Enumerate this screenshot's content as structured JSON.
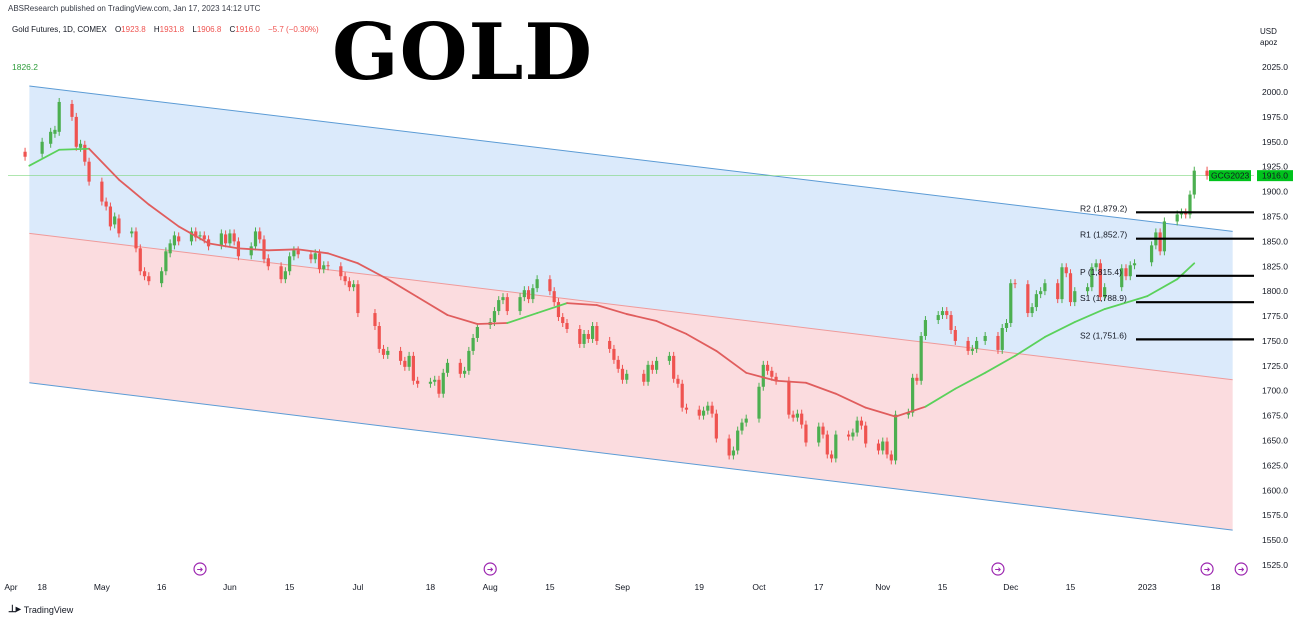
{
  "header": {
    "published_by": "ABSResearch published on TradingView.com, Jan 17, 2023 14:12 UTC"
  },
  "symbol_line": {
    "name": "Gold Futures, 1D, COMEX",
    "open_label": "O",
    "open": "1923.8",
    "high_label": "H",
    "high": "1931.8",
    "low_label": "L",
    "low": "1906.8",
    "close_label": "C",
    "close": "1916.0",
    "change": "−5.7 (−0.30%)"
  },
  "big_title": "GOLD",
  "currency": {
    "line1": "USD",
    "line2": "apoz"
  },
  "footer": {
    "brand": "TradingView"
  },
  "chart_data": {
    "type": "candlestick",
    "yticks": [
      "2025.0",
      "2000.0",
      "1975.0",
      "1950.0",
      "1925.0",
      "1900.0",
      "1875.0",
      "1850.0",
      "1825.0",
      "1800.0",
      "1775.0",
      "1750.0",
      "1725.0",
      "1700.0",
      "1675.0",
      "1650.0",
      "1625.0",
      "1600.0",
      "1575.0",
      "1550.0",
      "1525.0"
    ],
    "xticks": [
      {
        "label": "Apr",
        "date": "2022-04-15"
      },
      {
        "label": "18",
        "date": "2022-04-18"
      },
      {
        "label": "May",
        "date": "2022-05-02"
      },
      {
        "label": "16",
        "date": "2022-05-16"
      },
      {
        "label": "Jun",
        "date": "2022-06-01"
      },
      {
        "label": "15",
        "date": "2022-06-15"
      },
      {
        "label": "Jul",
        "date": "2022-07-01"
      },
      {
        "label": "18",
        "date": "2022-07-18"
      },
      {
        "label": "Aug",
        "date": "2022-08-01"
      },
      {
        "label": "15",
        "date": "2022-08-15"
      },
      {
        "label": "Sep",
        "date": "2022-09-01"
      },
      {
        "label": "19",
        "date": "2022-09-19"
      },
      {
        "label": "Oct",
        "date": "2022-10-03"
      },
      {
        "label": "17",
        "date": "2022-10-17"
      },
      {
        "label": "Nov",
        "date": "2022-11-01"
      },
      {
        "label": "15",
        "date": "2022-11-15"
      },
      {
        "label": "Dec",
        "date": "2022-12-01"
      },
      {
        "label": "15",
        "date": "2022-12-15"
      },
      {
        "label": "2023",
        "date": "2023-01-02"
      },
      {
        "label": "18",
        "date": "2023-01-18"
      }
    ],
    "left_price_label": "1826.2",
    "last_price": {
      "symbol": "GCG2023",
      "value": "1916.0",
      "price": 1916.0,
      "color": "#00c31c"
    },
    "pivots": [
      {
        "label": "R2 (1,879.2)",
        "value": 1879.2
      },
      {
        "label": "R1 (1,852.7)",
        "value": 1852.7
      },
      {
        "label": "P (1,815.4)",
        "value": 1815.4
      },
      {
        "label": "S1 (1,788.9)",
        "value": 1788.9
      },
      {
        "label": "S2 (1,751.6)",
        "value": 1751.6
      }
    ],
    "upper_channel": {
      "color": "#5b9bd5",
      "fill": "#dbeafb",
      "top": [
        [
          "2022-04-15",
          2006
        ],
        [
          "2023-01-22",
          1860
        ]
      ],
      "mid": [
        [
          "2022-04-15",
          1858
        ],
        [
          "2023-01-22",
          1711
        ]
      ]
    },
    "lower_channel": {
      "color": "#5b9bd5",
      "fill": "#fbdcdf",
      "bottom": [
        [
          "2022-04-15",
          1708
        ],
        [
          "2023-01-22",
          1560
        ]
      ]
    },
    "ma_color_up": "#5ad15a",
    "ma_color_down": "#e05d5d",
    "moving_average": [
      [
        "2022-04-15",
        1926
      ],
      [
        "2022-04-22",
        1942
      ],
      [
        "2022-04-29",
        1943
      ],
      [
        "2022-05-06",
        1912
      ],
      [
        "2022-05-13",
        1887
      ],
      [
        "2022-05-20",
        1865
      ],
      [
        "2022-05-27",
        1848
      ],
      [
        "2022-06-03",
        1843
      ],
      [
        "2022-06-10",
        1841
      ],
      [
        "2022-06-17",
        1842
      ],
      [
        "2022-06-24",
        1838
      ],
      [
        "2022-07-01",
        1828
      ],
      [
        "2022-07-08",
        1812
      ],
      [
        "2022-07-15",
        1794
      ],
      [
        "2022-07-22",
        1776
      ],
      [
        "2022-07-29",
        1767
      ],
      [
        "2022-08-05",
        1768
      ],
      [
        "2022-08-12",
        1778
      ],
      [
        "2022-08-19",
        1788
      ],
      [
        "2022-08-26",
        1786
      ],
      [
        "2022-09-02",
        1777
      ],
      [
        "2022-09-09",
        1770
      ],
      [
        "2022-09-16",
        1757
      ],
      [
        "2022-09-23",
        1740
      ],
      [
        "2022-09-30",
        1718
      ],
      [
        "2022-10-07",
        1710
      ],
      [
        "2022-10-14",
        1708
      ],
      [
        "2022-10-21",
        1697
      ],
      [
        "2022-10-28",
        1683
      ],
      [
        "2022-11-04",
        1674
      ],
      [
        "2022-11-11",
        1684
      ],
      [
        "2022-11-18",
        1702
      ],
      [
        "2022-11-25",
        1718
      ],
      [
        "2022-12-02",
        1735
      ],
      [
        "2022-12-09",
        1754
      ],
      [
        "2022-12-16",
        1769
      ],
      [
        "2022-12-23",
        1782
      ],
      [
        "2023-01-02",
        1795
      ],
      [
        "2023-01-09",
        1812
      ],
      [
        "2023-01-13",
        1828
      ]
    ],
    "ma_switch": [
      [
        "2022-04-20",
        "up"
      ],
      [
        "2022-04-26",
        "down"
      ],
      [
        "2022-08-01",
        "up"
      ],
      [
        "2022-08-16",
        "down"
      ],
      [
        "2022-11-06",
        "up"
      ]
    ],
    "candles": [
      [
        "2022-04-14",
        1940,
        1935
      ],
      [
        "2022-04-18",
        1938,
        1950
      ],
      [
        "2022-04-20",
        1948,
        1960
      ],
      [
        "2022-04-21",
        1958,
        1962
      ],
      [
        "2022-04-22",
        1960,
        1990
      ],
      [
        "2022-04-25",
        1988,
        1975
      ],
      [
        "2022-04-26",
        1975,
        1945
      ],
      [
        "2022-04-27",
        1944,
        1948
      ],
      [
        "2022-04-28",
        1947,
        1930
      ],
      [
        "2022-04-29",
        1930,
        1910
      ],
      [
        "2022-05-02",
        1910,
        1890
      ],
      [
        "2022-05-03",
        1890,
        1885
      ],
      [
        "2022-05-04",
        1885,
        1865
      ],
      [
        "2022-05-05",
        1867,
        1875
      ],
      [
        "2022-05-06",
        1873,
        1858
      ],
      [
        "2022-05-09",
        1858,
        1860
      ],
      [
        "2022-05-10",
        1860,
        1843
      ],
      [
        "2022-05-11",
        1843,
        1820
      ],
      [
        "2022-05-12",
        1820,
        1815
      ],
      [
        "2022-05-13",
        1815,
        1810
      ],
      [
        "2022-05-16",
        1808,
        1820
      ],
      [
        "2022-05-17",
        1820,
        1840
      ],
      [
        "2022-05-18",
        1838,
        1848
      ],
      [
        "2022-05-19",
        1846,
        1856
      ],
      [
        "2022-05-20",
        1855,
        1850
      ],
      [
        "2022-05-23",
        1850,
        1860
      ],
      [
        "2022-05-24",
        1860,
        1854
      ],
      [
        "2022-05-25",
        1855,
        1856
      ],
      [
        "2022-05-26",
        1856,
        1852
      ],
      [
        "2022-05-27",
        1852,
        1845
      ],
      [
        "2022-05-30",
        1846,
        1858
      ],
      [
        "2022-05-31",
        1857,
        1848
      ],
      [
        "2022-06-01",
        1848,
        1858
      ],
      [
        "2022-06-02",
        1858,
        1850
      ],
      [
        "2022-06-03",
        1850,
        1835
      ],
      [
        "2022-06-06",
        1836,
        1845
      ],
      [
        "2022-06-07",
        1845,
        1860
      ],
      [
        "2022-06-08",
        1860,
        1852
      ],
      [
        "2022-06-09",
        1852,
        1832
      ],
      [
        "2022-06-10",
        1833,
        1825
      ],
      [
        "2022-06-13",
        1825,
        1812
      ],
      [
        "2022-06-14",
        1812,
        1820
      ],
      [
        "2022-06-15",
        1820,
        1835
      ],
      [
        "2022-06-16",
        1835,
        1841
      ],
      [
        "2022-06-17",
        1841,
        1837
      ],
      [
        "2022-06-20",
        1837,
        1832
      ],
      [
        "2022-06-21",
        1832,
        1838
      ],
      [
        "2022-06-22",
        1838,
        1822
      ],
      [
        "2022-06-23",
        1822,
        1826
      ],
      [
        "2022-06-24",
        1826,
        1825
      ],
      [
        "2022-06-27",
        1825,
        1815
      ],
      [
        "2022-06-28",
        1815,
        1810
      ],
      [
        "2022-06-29",
        1810,
        1804
      ],
      [
        "2022-06-30",
        1804,
        1807
      ],
      [
        "2022-07-01",
        1807,
        1778
      ],
      [
        "2022-07-05",
        1778,
        1765
      ],
      [
        "2022-07-06",
        1765,
        1742
      ],
      [
        "2022-07-07",
        1742,
        1736
      ],
      [
        "2022-07-08",
        1736,
        1740
      ],
      [
        "2022-07-11",
        1740,
        1730
      ],
      [
        "2022-07-12",
        1730,
        1724
      ],
      [
        "2022-07-13",
        1724,
        1735
      ],
      [
        "2022-07-14",
        1735,
        1710
      ],
      [
        "2022-07-15",
        1710,
        1707
      ],
      [
        "2022-07-18",
        1707,
        1709
      ],
      [
        "2022-07-19",
        1709,
        1711
      ],
      [
        "2022-07-20",
        1711,
        1697
      ],
      [
        "2022-07-21",
        1697,
        1718
      ],
      [
        "2022-07-22",
        1718,
        1728
      ],
      [
        "2022-07-25",
        1728,
        1717
      ],
      [
        "2022-07-26",
        1717,
        1720
      ],
      [
        "2022-07-27",
        1720,
        1740
      ],
      [
        "2022-07-28",
        1740,
        1753
      ],
      [
        "2022-07-29",
        1753,
        1764
      ],
      [
        "2022-08-01",
        1766,
        1769
      ],
      [
        "2022-08-02",
        1769,
        1780
      ],
      [
        "2022-08-03",
        1780,
        1791
      ],
      [
        "2022-08-04",
        1791,
        1794
      ],
      [
        "2022-08-05",
        1794,
        1780
      ],
      [
        "2022-08-08",
        1780,
        1794
      ],
      [
        "2022-08-09",
        1794,
        1801
      ],
      [
        "2022-08-10",
        1801,
        1792
      ],
      [
        "2022-08-11",
        1792,
        1803
      ],
      [
        "2022-08-12",
        1803,
        1812
      ],
      [
        "2022-08-15",
        1812,
        1800
      ],
      [
        "2022-08-16",
        1800,
        1789
      ],
      [
        "2022-08-17",
        1789,
        1774
      ],
      [
        "2022-08-18",
        1774,
        1768
      ],
      [
        "2022-08-19",
        1768,
        1762
      ],
      [
        "2022-08-22",
        1762,
        1747
      ],
      [
        "2022-08-23",
        1747,
        1757
      ],
      [
        "2022-08-24",
        1757,
        1752
      ],
      [
        "2022-08-25",
        1752,
        1765
      ],
      [
        "2022-08-26",
        1765,
        1750
      ],
      [
        "2022-08-29",
        1750,
        1742
      ],
      [
        "2022-08-30",
        1742,
        1731
      ],
      [
        "2022-08-31",
        1731,
        1722
      ],
      [
        "2022-09-01",
        1722,
        1711
      ],
      [
        "2022-09-02",
        1711,
        1717
      ],
      [
        "2022-09-06",
        1717,
        1709
      ],
      [
        "2022-09-07",
        1709,
        1726
      ],
      [
        "2022-09-08",
        1726,
        1721
      ],
      [
        "2022-09-09",
        1721,
        1730
      ],
      [
        "2022-09-12",
        1730,
        1735
      ],
      [
        "2022-09-13",
        1735,
        1712
      ],
      [
        "2022-09-14",
        1712,
        1707
      ],
      [
        "2022-09-15",
        1707,
        1683
      ],
      [
        "2022-09-16",
        1683,
        1681
      ],
      [
        "2022-09-19",
        1681,
        1675
      ],
      [
        "2022-09-20",
        1675,
        1680
      ],
      [
        "2022-09-21",
        1680,
        1685
      ],
      [
        "2022-09-22",
        1685,
        1677
      ],
      [
        "2022-09-23",
        1677,
        1652
      ],
      [
        "2022-09-26",
        1652,
        1635
      ],
      [
        "2022-09-27",
        1635,
        1640
      ],
      [
        "2022-09-28",
        1640,
        1660
      ],
      [
        "2022-09-29",
        1660,
        1668
      ],
      [
        "2022-09-30",
        1668,
        1672
      ],
      [
        "2022-10-03",
        1672,
        1704
      ],
      [
        "2022-10-04",
        1704,
        1726
      ],
      [
        "2022-10-05",
        1726,
        1720
      ],
      [
        "2022-10-06",
        1720,
        1714
      ],
      [
        "2022-10-07",
        1714,
        1710
      ],
      [
        "2022-10-10",
        1710,
        1676
      ],
      [
        "2022-10-11",
        1676,
        1673
      ],
      [
        "2022-10-12",
        1673,
        1677
      ],
      [
        "2022-10-13",
        1677,
        1666
      ],
      [
        "2022-10-14",
        1666,
        1648
      ],
      [
        "2022-10-17",
        1648,
        1664
      ],
      [
        "2022-10-18",
        1664,
        1656
      ],
      [
        "2022-10-19",
        1656,
        1636
      ],
      [
        "2022-10-20",
        1636,
        1632
      ],
      [
        "2022-10-21",
        1632,
        1656
      ],
      [
        "2022-10-24",
        1656,
        1654
      ],
      [
        "2022-10-25",
        1654,
        1658
      ],
      [
        "2022-10-26",
        1658,
        1670
      ],
      [
        "2022-10-27",
        1670,
        1665
      ],
      [
        "2022-10-28",
        1665,
        1647
      ],
      [
        "2022-10-31",
        1647,
        1640
      ],
      [
        "2022-11-01",
        1640,
        1649
      ],
      [
        "2022-11-02",
        1649,
        1636
      ],
      [
        "2022-11-03",
        1636,
        1630
      ],
      [
        "2022-11-04",
        1630,
        1676
      ],
      [
        "2022-11-07",
        1676,
        1678
      ],
      [
        "2022-11-08",
        1678,
        1713
      ],
      [
        "2022-11-09",
        1713,
        1710
      ],
      [
        "2022-11-10",
        1710,
        1755
      ],
      [
        "2022-11-11",
        1755,
        1771
      ],
      [
        "2022-11-14",
        1771,
        1776
      ],
      [
        "2022-11-15",
        1776,
        1780
      ],
      [
        "2022-11-16",
        1780,
        1776
      ],
      [
        "2022-11-17",
        1776,
        1761
      ],
      [
        "2022-11-18",
        1761,
        1750
      ],
      [
        "2022-11-21",
        1750,
        1740
      ],
      [
        "2022-11-22",
        1740,
        1742
      ],
      [
        "2022-11-23",
        1742,
        1750
      ],
      [
        "2022-11-25",
        1750,
        1755
      ],
      [
        "2022-11-28",
        1755,
        1741
      ],
      [
        "2022-11-29",
        1741,
        1763
      ],
      [
        "2022-11-30",
        1763,
        1768
      ],
      [
        "2022-12-01",
        1768,
        1808
      ],
      [
        "2022-12-02",
        1808,
        1807
      ],
      [
        "2022-12-05",
        1807,
        1778
      ],
      [
        "2022-12-06",
        1778,
        1784
      ],
      [
        "2022-12-07",
        1784,
        1797
      ],
      [
        "2022-12-08",
        1797,
        1800
      ],
      [
        "2022-12-09",
        1800,
        1808
      ],
      [
        "2022-12-12",
        1808,
        1792
      ],
      [
        "2022-12-13",
        1792,
        1824
      ],
      [
        "2022-12-14",
        1824,
        1818
      ],
      [
        "2022-12-15",
        1818,
        1789
      ],
      [
        "2022-12-16",
        1789,
        1800
      ],
      [
        "2022-12-19",
        1800,
        1804
      ],
      [
        "2022-12-20",
        1804,
        1824
      ],
      [
        "2022-12-21",
        1824,
        1828
      ],
      [
        "2022-12-22",
        1828,
        1794
      ],
      [
        "2022-12-23",
        1794,
        1804
      ],
      [
        "2022-12-27",
        1804,
        1823
      ],
      [
        "2022-12-28",
        1823,
        1815
      ],
      [
        "2022-12-29",
        1815,
        1826
      ],
      [
        "2022-12-30",
        1826,
        1828
      ],
      [
        "2023-01-03",
        1829,
        1846
      ],
      [
        "2023-01-04",
        1846,
        1859
      ],
      [
        "2023-01-05",
        1859,
        1840
      ],
      [
        "2023-01-06",
        1840,
        1870
      ],
      [
        "2023-01-09",
        1870,
        1877
      ],
      [
        "2023-01-10",
        1877,
        1879
      ],
      [
        "2023-01-11",
        1879,
        1877
      ],
      [
        "2023-01-12",
        1877,
        1897
      ],
      [
        "2023-01-13",
        1897,
        1921
      ],
      [
        "2023-01-16",
        1921,
        1916
      ]
    ]
  }
}
